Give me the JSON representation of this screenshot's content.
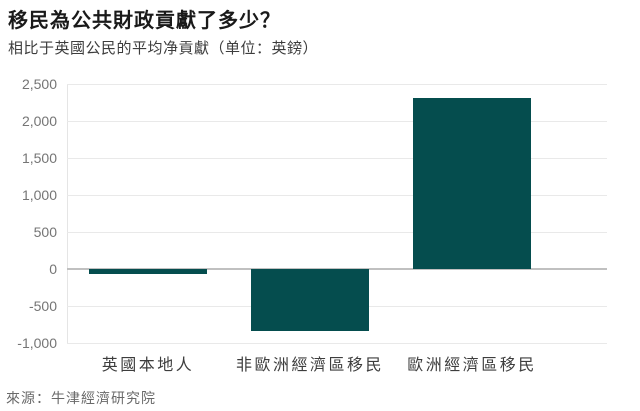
{
  "header": {
    "title": "移民為公共財政貢獻了多少？",
    "subtitle": "相比于英國公民的平均净貢獻（单位：英鎊）"
  },
  "footer": {
    "source": "來源：牛津經濟研究院"
  },
  "colors": {
    "bar": "#054d4e",
    "grid": "#e9e9e9",
    "zero_line": "#c0c0c0",
    "axis_tick_text": "#757575",
    "category_text": "#3d3d3d",
    "title_text": "#1a1a1a",
    "source_text": "#696969"
  },
  "chart_data": {
    "type": "bar",
    "title": "移民為公共財政貢獻了多少？",
    "subtitle": "相比于英國公民的平均净貢獻（单位：英鎊）",
    "source": "來源：牛津經濟研究院",
    "categories": [
      "英國本地人",
      "非歐洲經濟區移民",
      "歐洲經濟區移民"
    ],
    "values": [
      -70,
      -840,
      2310
    ],
    "xlabel": "",
    "ylabel": "",
    "ylim": [
      -1000,
      2500
    ],
    "yticks": [
      2500,
      2000,
      1500,
      1000,
      500,
      0,
      -500,
      -1000
    ],
    "ytick_labels": [
      "2,500",
      "2,000",
      "1,500",
      "1,000",
      "500",
      "0",
      "-500",
      "-1,000"
    ],
    "grid": "horizontal",
    "legend": "none",
    "bar_color": "#054d4e"
  }
}
